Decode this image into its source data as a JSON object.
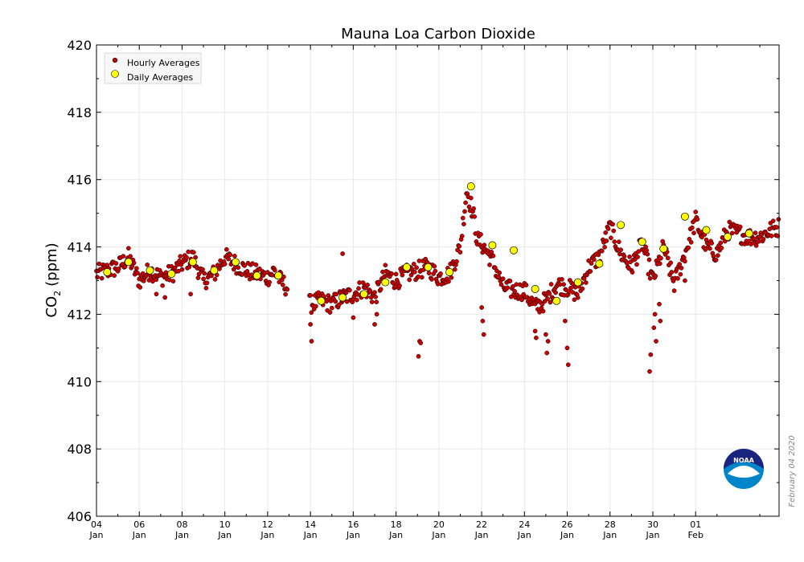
{
  "chart_data": {
    "type": "scatter",
    "title": "Mauna Loa Carbon Dioxide",
    "ylabel_main": "CO",
    "ylabel_sub": "2",
    "ylabel_unit": "(ppm)",
    "ylim": [
      406,
      420
    ],
    "yticks": [
      406,
      408,
      410,
      412,
      414,
      416,
      418,
      420
    ],
    "xlim": [
      0,
      31.9
    ],
    "xticks": [
      {
        "day": 0,
        "label": "04",
        "month": "Jan"
      },
      {
        "day": 2,
        "label": "06",
        "month": "Jan"
      },
      {
        "day": 4,
        "label": "08",
        "month": "Jan"
      },
      {
        "day": 6,
        "label": "10",
        "month": "Jan"
      },
      {
        "day": 8,
        "label": "12",
        "month": "Jan"
      },
      {
        "day": 10,
        "label": "14",
        "month": "Jan"
      },
      {
        "day": 12,
        "label": "16",
        "month": "Jan"
      },
      {
        "day": 14,
        "label": "18",
        "month": "Jan"
      },
      {
        "day": 16,
        "label": "20",
        "month": "Jan"
      },
      {
        "day": 18,
        "label": "22",
        "month": "Jan"
      },
      {
        "day": 20,
        "label": "24",
        "month": "Jan"
      },
      {
        "day": 22,
        "label": "26",
        "month": "Jan"
      },
      {
        "day": 24,
        "label": "28",
        "month": "Jan"
      },
      {
        "day": 26,
        "label": "30",
        "month": "Jan"
      },
      {
        "day": 28,
        "label": "01",
        "month": "Feb"
      }
    ],
    "legend": {
      "placement": "top-left",
      "entries": [
        "Hourly Averages",
        "Daily Averages"
      ]
    },
    "colors": {
      "hourly": "#cc0000",
      "daily": "#ffff00",
      "grid": "#e8e8e8"
    },
    "series": [
      {
        "name": "Daily Averages",
        "x": [
          0.5,
          1.5,
          2.5,
          3.5,
          4.5,
          5.5,
          6.5,
          7.5,
          8.5,
          10.5,
          11.5,
          12.5,
          13.5,
          14.5,
          15.5,
          16.5,
          17.5,
          18.5,
          19.5,
          20.5,
          21.5,
          22.5,
          23.5,
          24.5,
          25.5,
          26.5,
          27.5,
          28.5,
          29.5,
          30.5
        ],
        "y": [
          413.25,
          413.55,
          413.3,
          413.2,
          413.55,
          413.3,
          413.55,
          413.15,
          413.15,
          412.4,
          412.5,
          412.6,
          412.95,
          413.4,
          413.4,
          413.25,
          415.8,
          414.05,
          413.9,
          412.75,
          412.4,
          412.95,
          413.5,
          414.65,
          414.15,
          413.95,
          414.9,
          414.5,
          414.3,
          414.4
        ]
      },
      {
        "name": "Hourly Averages",
        "anchors": {
          "x": [
            0,
            0.5,
            1,
            1.5,
            2,
            2.5,
            3,
            3.5,
            4,
            4.5,
            5,
            5.5,
            6,
            6.5,
            7,
            7.5,
            8,
            8.3,
            8.6,
            8.9,
            10,
            10.5,
            11,
            11.5,
            12,
            12.5,
            13,
            13.5,
            14,
            14.5,
            15,
            15.5,
            16,
            16.5,
            17,
            17.3,
            17.6,
            17.8,
            18,
            18.5,
            19,
            19.5,
            20,
            20.5,
            21,
            21.5,
            22,
            22.5,
            23,
            23.5,
            24,
            24.5,
            25,
            25.5,
            26,
            26.5,
            27,
            27.5,
            28,
            28.5,
            29,
            29.5,
            30,
            30.5,
            31,
            31.5,
            31.9
          ],
          "y": [
            413.2,
            413.3,
            413.4,
            413.7,
            413.0,
            413.3,
            413.1,
            413.2,
            413.5,
            413.7,
            413.0,
            413.2,
            413.7,
            413.5,
            413.3,
            413.2,
            413.1,
            413.3,
            413.0,
            412.8,
            412.3,
            412.4,
            412.3,
            412.5,
            412.6,
            412.8,
            412.5,
            413.2,
            413.0,
            413.2,
            413.3,
            413.4,
            413.1,
            413.2,
            414.0,
            415.7,
            415.0,
            414.2,
            414.1,
            413.6,
            412.8,
            412.7,
            412.7,
            412.2,
            412.4,
            412.9,
            412.8,
            412.6,
            413.4,
            413.7,
            414.6,
            413.8,
            413.4,
            414.1,
            413.0,
            414.0,
            412.9,
            413.8,
            414.8,
            414.0,
            413.8,
            414.5,
            414.4,
            414.3,
            414.3,
            414.5,
            414.6
          ]
        },
        "outliers": {
          "x": [
            2.8,
            3.2,
            4.4,
            10.0,
            10.05,
            11.5,
            12.0,
            13.0,
            13.1,
            15.1,
            15.15,
            15.05,
            18.0,
            18.05,
            18.1,
            20.5,
            20.55,
            21.0,
            21.05,
            21.1,
            21.9,
            22.0,
            22.05,
            25.85,
            25.9,
            26.05,
            26.1,
            26.15,
            26.3,
            26.35,
            27.5
          ],
          "y": [
            412.6,
            412.5,
            412.6,
            411.7,
            411.2,
            413.8,
            411.9,
            411.7,
            412.0,
            411.2,
            411.15,
            410.75,
            412.2,
            411.8,
            411.4,
            411.5,
            411.3,
            411.4,
            410.85,
            411.2,
            411.8,
            411.0,
            410.5,
            410.3,
            410.8,
            411.6,
            412.0,
            411.2,
            412.3,
            411.8,
            413.0
          ]
        }
      }
    ]
  },
  "watermark": {
    "date": "February 04 2020",
    "logo_text": "NOAA"
  }
}
